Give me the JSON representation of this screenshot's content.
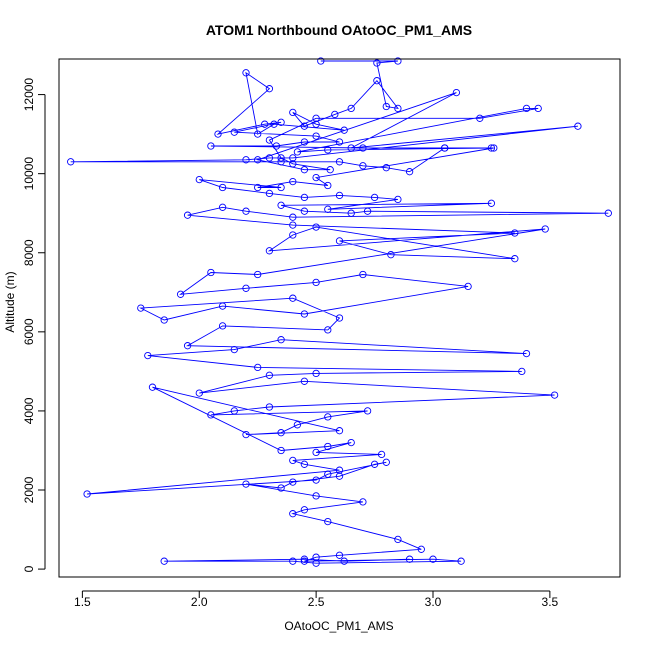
{
  "chart_data": {
    "type": "line",
    "title": "ATOM1 Northbound OAtoOC_PM1_AMS",
    "xlabel": "OAtoOC_PM1_AMS",
    "ylabel": "Altitude (m)",
    "xlim": [
      1.4,
      3.8
    ],
    "ylim": [
      -200,
      12900
    ],
    "x_ticks": [
      "1.5",
      "2.0",
      "2.5",
      "3.0",
      "3.5"
    ],
    "y_ticks": [
      "0",
      "2000",
      "4000",
      "6000",
      "8000",
      "10000",
      "12000"
    ],
    "grid": false,
    "series_color": "#0000ff",
    "series": [
      {
        "x": [
          2.52,
          2.85,
          2.76,
          2.8,
          2.85,
          2.76,
          2.65,
          2.58,
          2.45,
          2.4,
          2.5,
          2.62,
          2.32,
          2.25,
          2.2,
          2.3,
          2.08,
          2.28,
          2.35,
          2.15,
          2.5,
          2.6,
          2.45,
          2.33,
          2.05,
          2.7,
          3.05,
          3.25,
          2.55,
          2.42,
          3.4,
          3.45,
          3.2,
          2.5,
          2.3,
          2.35,
          2.4,
          2.56,
          2.45,
          2.25,
          3.1,
          2.65,
          3.62,
          2.4,
          2.3,
          2.2,
          1.45,
          2.35,
          2.6,
          2.7,
          2.8,
          2.9,
          3.05,
          3.26,
          2.5,
          2.55,
          2.4,
          2.25,
          2.35,
          2.0,
          2.1,
          2.3,
          2.45,
          2.6,
          2.75,
          2.85,
          2.55,
          3.25,
          2.35,
          2.45,
          2.65,
          2.72,
          3.75,
          2.4,
          2.2,
          2.1,
          1.95,
          2.4,
          3.35,
          2.6,
          2.82,
          3.35,
          2.5,
          2.4,
          2.3,
          3.48,
          2.25,
          2.05,
          1.92,
          2.2,
          2.5,
          2.7,
          3.15,
          2.45,
          2.1,
          1.85,
          1.75,
          2.4,
          2.6,
          2.55,
          2.1,
          1.95,
          3.4,
          2.35,
          2.15,
          1.78,
          2.25,
          3.38,
          2.5,
          2.3,
          2.0,
          2.45,
          3.52,
          2.3,
          2.15,
          2.05,
          2.72,
          2.55,
          2.42,
          2.35,
          2.2,
          2.6,
          1.8,
          2.35,
          2.55,
          2.65,
          2.5,
          2.78,
          2.4,
          2.45,
          2.6,
          1.52,
          2.5,
          2.55,
          2.8,
          2.75,
          2.6,
          2.4,
          2.35,
          2.2,
          2.5,
          2.7,
          2.45,
          2.4,
          2.55,
          2.85,
          2.95,
          2.6,
          2.5,
          2.45,
          3.0,
          3.12,
          2.5,
          2.4,
          1.85,
          2.45,
          2.62,
          2.9
        ],
        "y": [
          12850,
          12850,
          12800,
          11700,
          11650,
          12350,
          11650,
          11500,
          11200,
          11550,
          11250,
          11100,
          11250,
          11000,
          12550,
          12150,
          11000,
          11250,
          11300,
          11050,
          10950,
          10800,
          10800,
          10700,
          10700,
          10650,
          10650,
          10650,
          10600,
          10550,
          11650,
          11650,
          11400,
          11400,
          10850,
          10400,
          10250,
          10100,
          10100,
          10350,
          12050,
          10650,
          11200,
          10400,
          10400,
          10350,
          10300,
          10300,
          10300,
          10200,
          10150,
          10050,
          10650,
          10650,
          9900,
          9700,
          9800,
          9650,
          9650,
          9850,
          9650,
          9500,
          9400,
          9450,
          9400,
          9350,
          9100,
          9250,
          9200,
          9050,
          9000,
          9050,
          9000,
          8900,
          9050,
          9150,
          8950,
          8700,
          8500,
          8300,
          7950,
          7850,
          8650,
          8450,
          8050,
          8600,
          7450,
          7500,
          6950,
          7100,
          7250,
          7450,
          7150,
          6450,
          6650,
          6300,
          6600,
          6850,
          6350,
          6050,
          6150,
          5650,
          5450,
          5800,
          5550,
          5400,
          5100,
          5000,
          4950,
          4900,
          4450,
          4750,
          4400,
          4100,
          4000,
          3900,
          4000,
          3850,
          3650,
          3450,
          3400,
          3500,
          4600,
          3000,
          3100,
          3200,
          2950,
          2900,
          2750,
          2650,
          2500,
          1900,
          2250,
          2400,
          2700,
          2650,
          2350,
          2200,
          2050,
          2150,
          1850,
          1700,
          1500,
          1400,
          1200,
          750,
          500,
          350,
          300,
          200,
          250,
          200,
          150,
          200,
          200,
          250,
          200,
          250
        ]
      }
    ]
  }
}
